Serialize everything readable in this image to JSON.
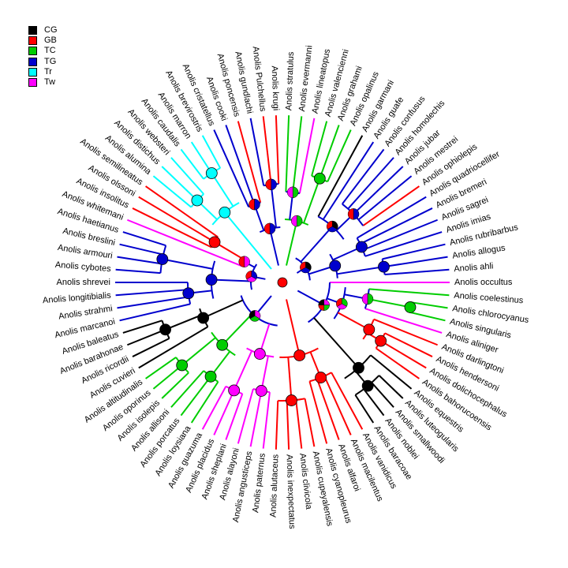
{
  "legend": [
    {
      "code": "CG",
      "color": "#000000"
    },
    {
      "code": "GB",
      "color": "#ff0000"
    },
    {
      "code": "TC",
      "color": "#00cd00"
    },
    {
      "code": "TG",
      "color": "#0000cd"
    },
    {
      "code": "Tr",
      "color": "#00ffff"
    },
    {
      "code": "Tw",
      "color": "#ff00ff"
    }
  ],
  "taxa": [
    {
      "name": "Anolis occultus",
      "state": "Tw"
    },
    {
      "name": "Anolis coelestinus",
      "state": "TC"
    },
    {
      "name": "Anolis chlorocyanus",
      "state": "TC"
    },
    {
      "name": "Anolis singularis",
      "state": "TC"
    },
    {
      "name": "Anolis aliniger",
      "state": "Tw"
    },
    {
      "name": "Anolis darlingtoni",
      "state": "GB"
    },
    {
      "name": "Anolis hendersoni",
      "state": "GB"
    },
    {
      "name": "Anolis dolichocephalus",
      "state": "GB"
    },
    {
      "name": "Anolis bahorucoensis",
      "state": "GB"
    },
    {
      "name": "Anolis equestris",
      "state": "CG"
    },
    {
      "name": "Anolis luteogularis",
      "state": "CG"
    },
    {
      "name": "Anolis smallwoodi",
      "state": "CG"
    },
    {
      "name": "Anolis noblei",
      "state": "CG"
    },
    {
      "name": "Anolis baracoae",
      "state": "CG"
    },
    {
      "name": "Anolis vanidicus",
      "state": "GB"
    },
    {
      "name": "Anolis macilentus",
      "state": "GB"
    },
    {
      "name": "Anolis alfaroi",
      "state": "GB"
    },
    {
      "name": "Anolis cyanopleurus",
      "state": "GB"
    },
    {
      "name": "Anolis cupeyalensis",
      "state": "GB"
    },
    {
      "name": "Anolis clivicola",
      "state": "GB"
    },
    {
      "name": "Anolis inexpectatus",
      "state": "GB"
    },
    {
      "name": "Anolis alutaceus",
      "state": "GB"
    },
    {
      "name": "Anolis paternus",
      "state": "Tw"
    },
    {
      "name": "Anolis angusticeps",
      "state": "Tw"
    },
    {
      "name": "Anolis alayoni",
      "state": "Tw"
    },
    {
      "name": "Anolis sheplani",
      "state": "Tw"
    },
    {
      "name": "Anolis placidus",
      "state": "Tw"
    },
    {
      "name": "Anolis guazuma",
      "state": "Tw"
    },
    {
      "name": "Anolis loysiana",
      "state": "TC"
    },
    {
      "name": "Anolis porcatus",
      "state": "TC"
    },
    {
      "name": "Anolis allisoni",
      "state": "TC"
    },
    {
      "name": "Anolis isolepis",
      "state": "TC"
    },
    {
      "name": "Anolis oporinus",
      "state": "TC"
    },
    {
      "name": "Anolis altitudinalis",
      "state": "TC"
    },
    {
      "name": "Anolis cuvieri",
      "state": "CG"
    },
    {
      "name": "Anolis ricordii",
      "state": "CG"
    },
    {
      "name": "Anolis barahonae",
      "state": "CG"
    },
    {
      "name": "Anolis baleatus",
      "state": "CG"
    },
    {
      "name": "Anolis marcanoi",
      "state": "TG"
    },
    {
      "name": "Anolis strahmi",
      "state": "TG"
    },
    {
      "name": "Anolis longitibialis",
      "state": "TG"
    },
    {
      "name": "Anolis shrevei",
      "state": "TG"
    },
    {
      "name": "Anolis cybotes",
      "state": "TG"
    },
    {
      "name": "Anolis armouri",
      "state": "TG"
    },
    {
      "name": "Anolis breslini",
      "state": "TG"
    },
    {
      "name": "Anolis haetianus",
      "state": "TG"
    },
    {
      "name": "Anolis whitemani",
      "state": "Tw"
    },
    {
      "name": "Anolis insolitus",
      "state": "GB"
    },
    {
      "name": "Anolis olssoni",
      "state": "GB"
    },
    {
      "name": "Anolis semilineatus",
      "state": "GB"
    },
    {
      "name": "Anolis alumina",
      "state": "Tr"
    },
    {
      "name": "Anolis distichus",
      "state": "Tr"
    },
    {
      "name": "Anolis websteri",
      "state": "Tr"
    },
    {
      "name": "Anolis caudalis",
      "state": "Tr"
    },
    {
      "name": "Anolis marron",
      "state": "Tr"
    },
    {
      "name": "Anolis brevirostris",
      "state": "Tr"
    },
    {
      "name": "Anolis cristatellus",
      "state": "TG"
    },
    {
      "name": "Anolis cooki",
      "state": "TG"
    },
    {
      "name": "Anolis poncensis",
      "state": "GB"
    },
    {
      "name": "Anolis gundlachi",
      "state": "TG"
    },
    {
      "name": "Anolis Pulchellus",
      "state": "GB"
    },
    {
      "name": "Anolis krugi",
      "state": "GB"
    },
    {
      "name": "Anolis stratulus",
      "state": "TC"
    },
    {
      "name": "Anolis evermanni",
      "state": "TC"
    },
    {
      "name": "Anolis lineatopus",
      "state": "Tw"
    },
    {
      "name": "Anolis valencienni",
      "state": "TC"
    },
    {
      "name": "Anolis grahami",
      "state": "TC"
    },
    {
      "name": "Anolis opalinus",
      "state": "TC"
    },
    {
      "name": "Anolis garmani",
      "state": "CG"
    },
    {
      "name": "Anolis guafe",
      "state": "TG"
    },
    {
      "name": "Anolis confusus",
      "state": "TG"
    },
    {
      "name": "Anolis homolechis",
      "state": "TG"
    },
    {
      "name": "Anolis jubar",
      "state": "TG"
    },
    {
      "name": "Anolis mestrei",
      "state": "TG"
    },
    {
      "name": "Anolis ophiolepis",
      "state": "GB"
    },
    {
      "name": "Anolis quadriocellifer",
      "state": "TG"
    },
    {
      "name": "Anolis bremeri",
      "state": "TG"
    },
    {
      "name": "Anolis sagrei",
      "state": "TG"
    },
    {
      "name": "Anolis imias",
      "state": "TG"
    },
    {
      "name": "Anolis rubribarbus",
      "state": "TG"
    },
    {
      "name": "Anolis allogus",
      "state": "TG"
    },
    {
      "name": "Anolis ahli",
      "state": "TG"
    }
  ]
}
